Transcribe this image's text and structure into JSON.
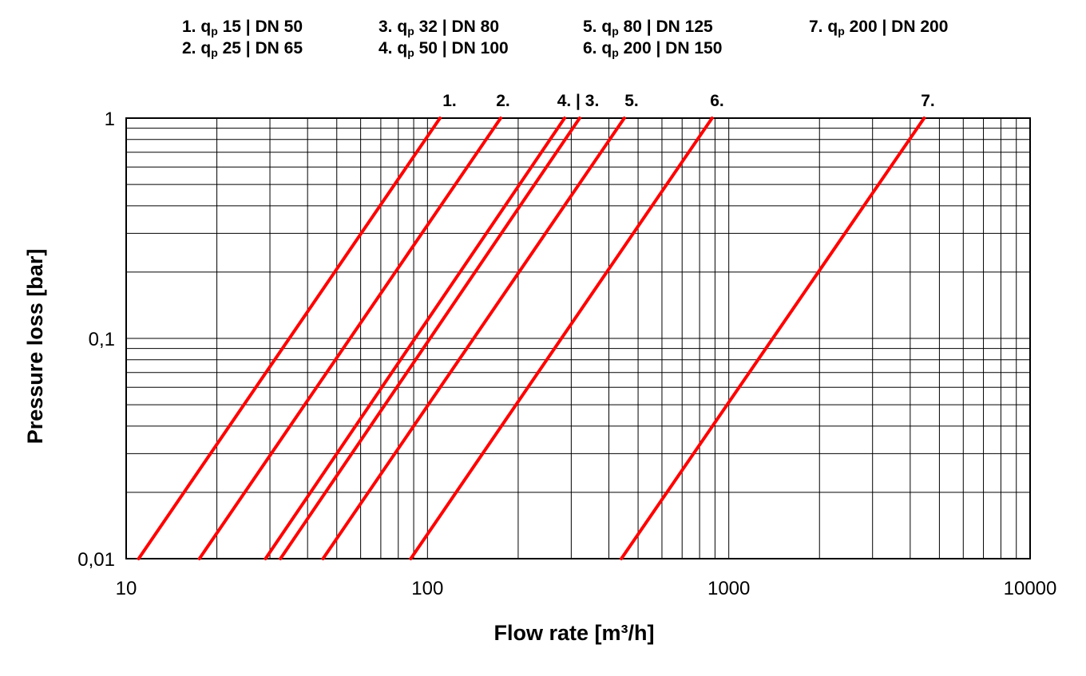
{
  "legend": [
    {
      "num": "1.",
      "q": "q",
      "sub": "p",
      "rest": " 15 | DN 50"
    },
    {
      "num": "2.",
      "q": "q",
      "sub": "p",
      "rest": " 25 | DN 65"
    },
    {
      "num": "3.",
      "q": "q",
      "sub": "p",
      "rest": " 32 | DN 80"
    },
    {
      "num": "4.",
      "q": "q",
      "sub": "p",
      "rest": " 50 | DN 100"
    },
    {
      "num": "5.",
      "q": "q",
      "sub": "p",
      "rest": " 80 | DN 125"
    },
    {
      "num": "6.",
      "q": "q",
      "sub": "p",
      "rest": " 200 | DN 150"
    },
    {
      "num": "7.",
      "q": "q",
      "sub": "p",
      "rest": " 200 | DN 200"
    }
  ],
  "chart_data": {
    "type": "line",
    "xscale": "log",
    "yscale": "log",
    "xlim": [
      10,
      10000
    ],
    "ylim": [
      0.01,
      1
    ],
    "grid": true,
    "xlabel": "Flow rate [m³/h]",
    "ylabel": "Pressure loss [bar]",
    "x_ticks": [
      "10",
      "100",
      "1000",
      "10000"
    ],
    "y_ticks": [
      "0,01",
      "0,1",
      "1"
    ],
    "line_color": "#ff0000",
    "curve_labels": [
      "1.",
      "2.",
      "4. | 3.",
      "5.",
      "6.",
      "7."
    ],
    "series": [
      {
        "name": "1.",
        "points": [
          [
            11,
            0.01
          ],
          [
            110,
            1
          ]
        ]
      },
      {
        "name": "2.",
        "points": [
          [
            17.5,
            0.01
          ],
          [
            175,
            1
          ]
        ]
      },
      {
        "name": "3.",
        "points": [
          [
            32.5,
            0.01
          ],
          [
            320,
            1
          ]
        ]
      },
      {
        "name": "4.",
        "points": [
          [
            29,
            0.01
          ],
          [
            285,
            1
          ]
        ]
      },
      {
        "name": "5.",
        "points": [
          [
            45,
            0.01
          ],
          [
            450,
            1
          ]
        ]
      },
      {
        "name": "6.",
        "points": [
          [
            88,
            0.01
          ],
          [
            880,
            1
          ]
        ]
      },
      {
        "name": "7.",
        "points": [
          [
            440,
            0.01
          ],
          [
            4450,
            1
          ]
        ]
      }
    ]
  }
}
